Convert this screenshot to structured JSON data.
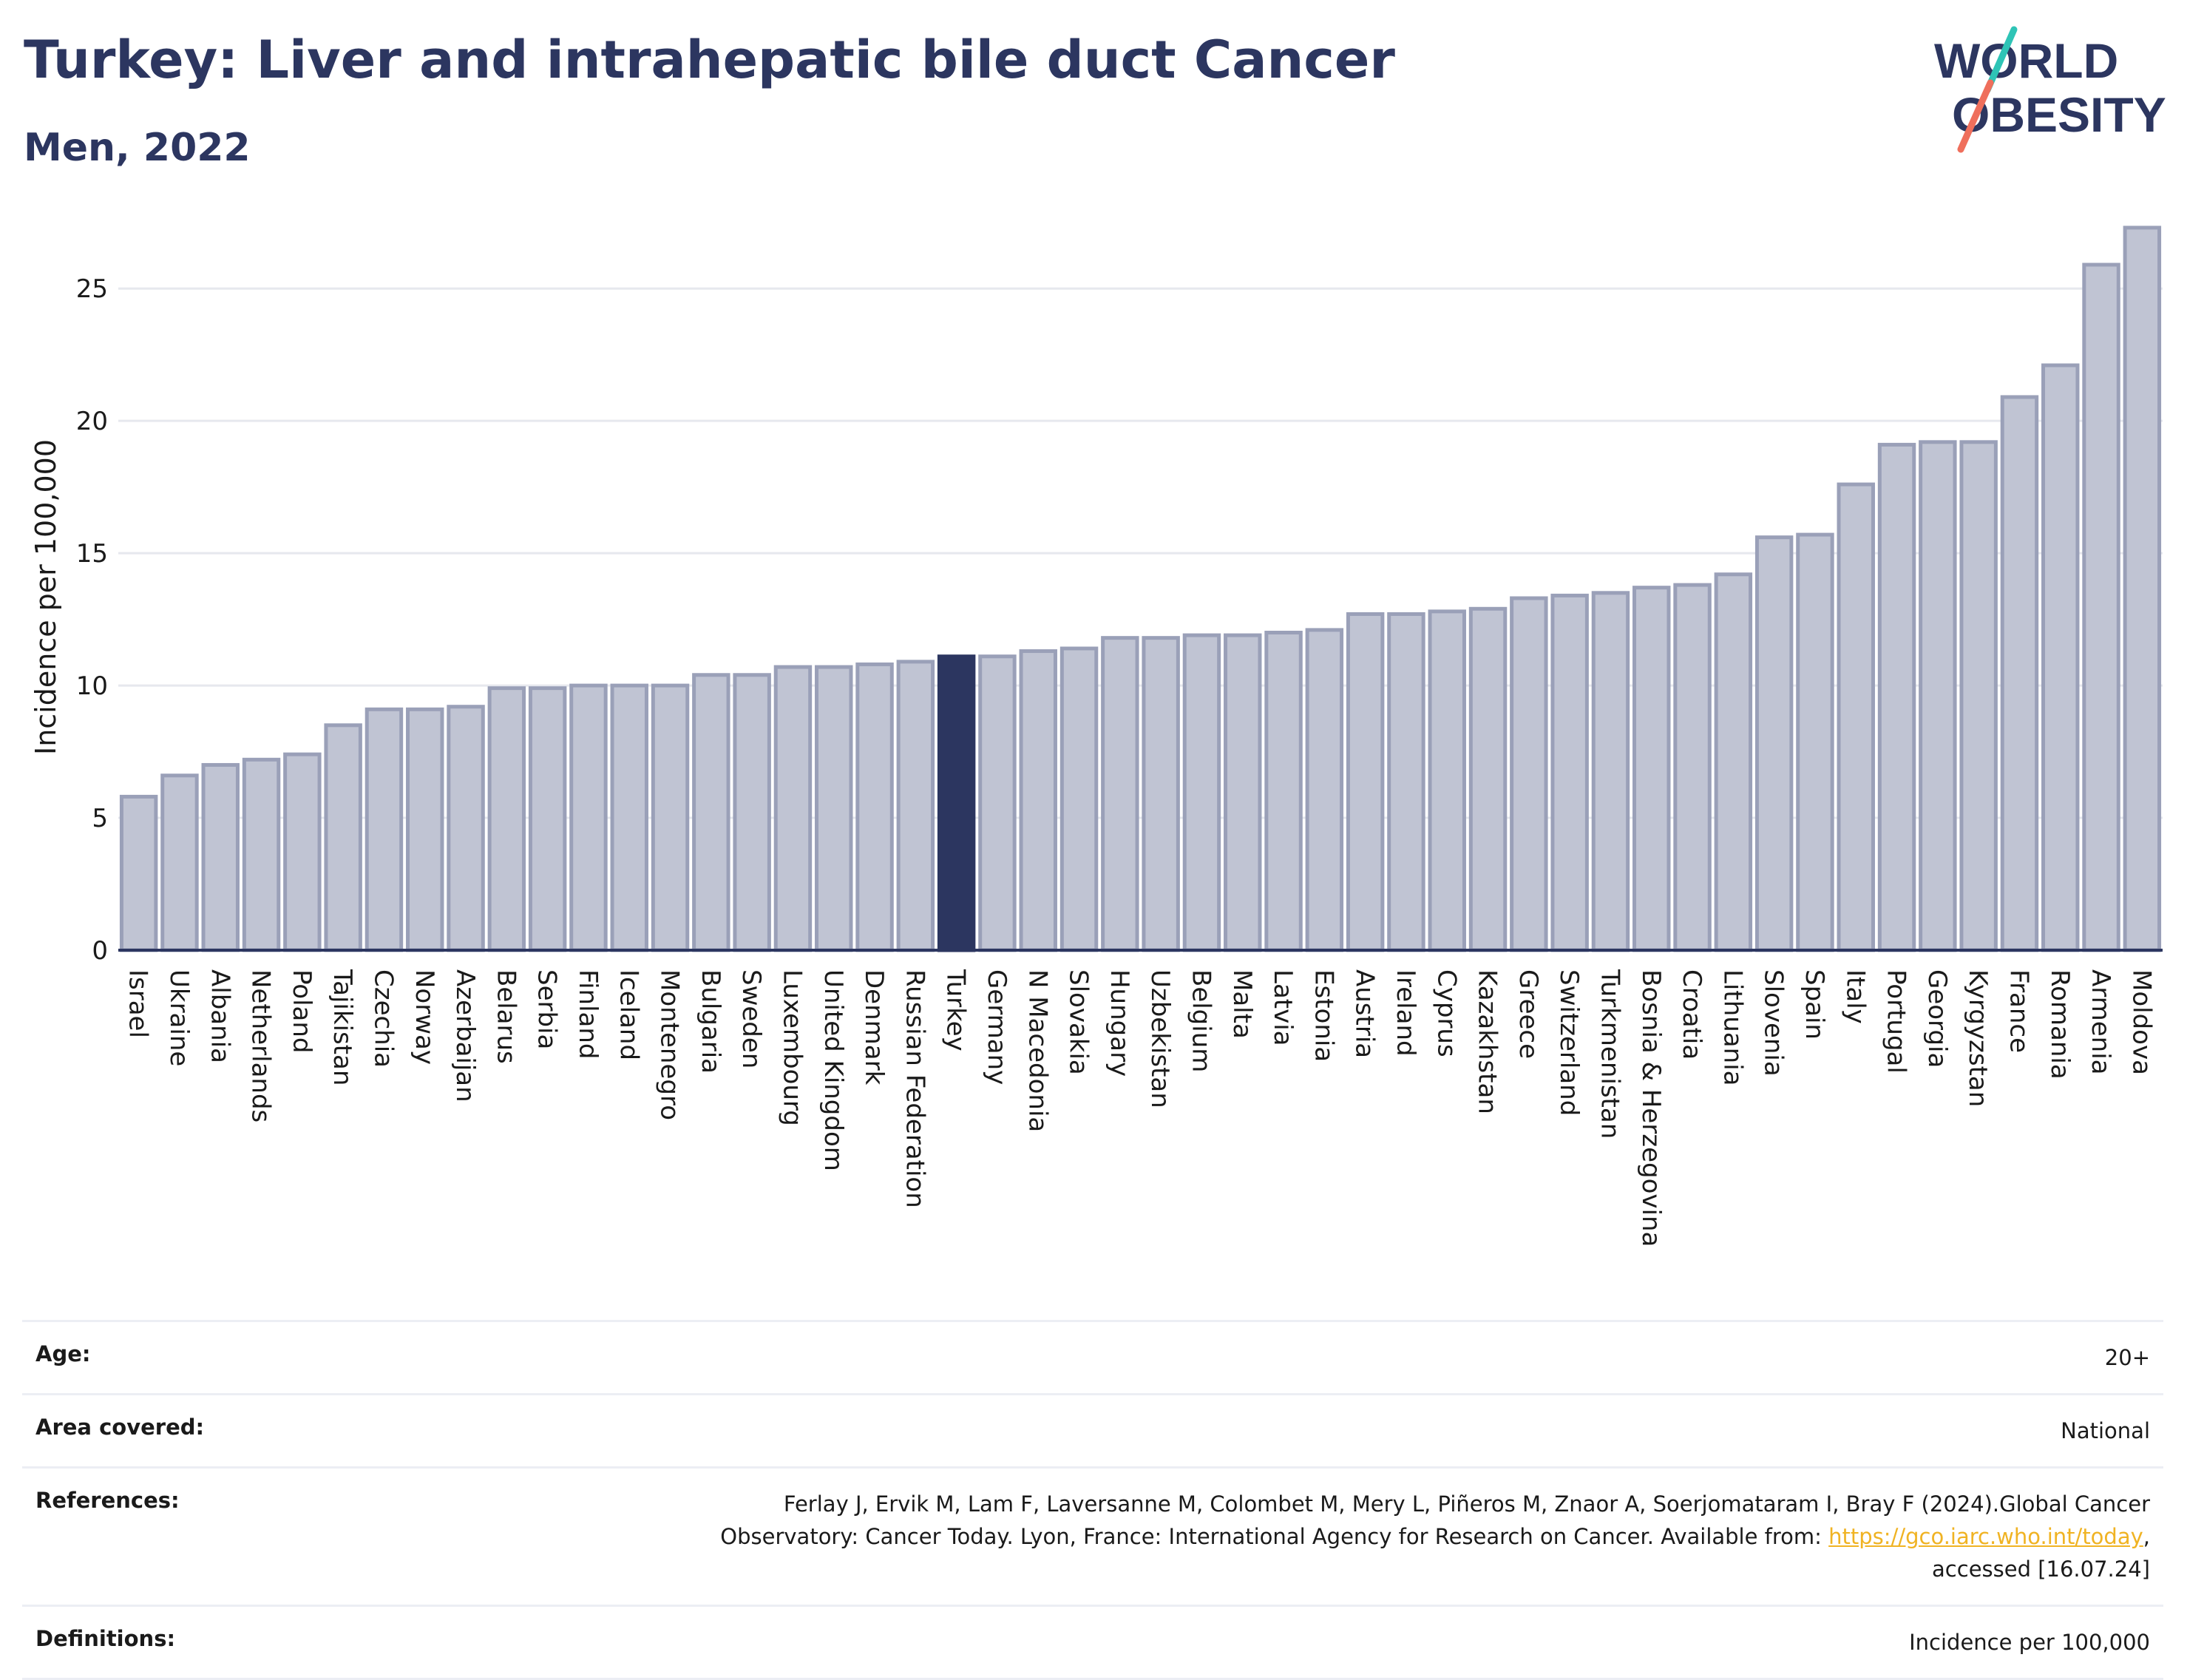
{
  "header": {
    "title": "Turkey: Liver and intrahepatic bile duct Cancer",
    "subtitle": "Men, 2022"
  },
  "logo": {
    "line1": "WORLD",
    "line2": "OBESITY"
  },
  "chart_data": {
    "type": "bar",
    "title": "Turkey: Liver and intrahepatic bile duct Cancer",
    "subtitle": "Men, 2022",
    "ylabel": "Incidence per 100,000",
    "xlabel": "",
    "ylim": [
      0,
      27.8
    ],
    "yticks": [
      0,
      5,
      10,
      15,
      20,
      25
    ],
    "grid": true,
    "highlight": "Turkey",
    "colors": {
      "bar": "#c0c4d3",
      "bar_edge": "#9aa0b8",
      "highlight": "#2c3660"
    },
    "categories": [
      "Israel",
      "Ukraine",
      "Albania",
      "Netherlands",
      "Poland",
      "Tajikistan",
      "Czechia",
      "Norway",
      "Azerbaijan",
      "Belarus",
      "Serbia",
      "Finland",
      "Iceland",
      "Montenegro",
      "Bulgaria",
      "Sweden",
      "Luxembourg",
      "United Kingdom",
      "Denmark",
      "Russian Federation",
      "Turkey",
      "Germany",
      "N Macedonia",
      "Slovakia",
      "Hungary",
      "Uzbekistan",
      "Belgium",
      "Malta",
      "Latvia",
      "Estonia",
      "Austria",
      "Ireland",
      "Cyprus",
      "Kazakhstan",
      "Greece",
      "Switzerland",
      "Turkmenistan",
      "Bosnia & Herzegovina",
      "Croatia",
      "Lithuania",
      "Slovenia",
      "Spain",
      "Italy",
      "Portugal",
      "Georgia",
      "Kyrgyzstan",
      "France",
      "Romania",
      "Armenia",
      "Moldova"
    ],
    "values": [
      5.8,
      6.6,
      7.0,
      7.2,
      7.4,
      8.5,
      9.1,
      9.1,
      9.2,
      9.9,
      9.9,
      10.0,
      10.0,
      10.0,
      10.4,
      10.4,
      10.7,
      10.7,
      10.8,
      10.9,
      11.1,
      11.1,
      11.3,
      11.4,
      11.8,
      11.8,
      11.9,
      11.9,
      12.0,
      12.1,
      12.7,
      12.7,
      12.8,
      12.9,
      13.3,
      13.4,
      13.5,
      13.7,
      13.8,
      14.2,
      15.6,
      15.7,
      17.6,
      19.1,
      19.2,
      19.2,
      20.9,
      22.1,
      25.9,
      27.3
    ]
  },
  "table": {
    "rows": [
      {
        "label": "Age:",
        "value": "20+"
      },
      {
        "label": "Area covered:",
        "value": "National"
      },
      {
        "label": "References:",
        "value_line1": "Ferlay J, Ervik M, Lam F, Laversanne M, Colombet M, Mery L, Piñeros M, Znaor A, Soerjomataram I, Bray F (2024).Global Cancer",
        "value_line2": "Observatory: Cancer Today. Lyon, France: International Agency for Research on Cancer. Available from:",
        "link": "https://gco.iarc.who.int/today",
        "link_suffix": ",",
        "value_line3": "accessed [16.07.24]"
      },
      {
        "label": "Definitions:",
        "value": "Incidence per 100,000"
      }
    ]
  }
}
